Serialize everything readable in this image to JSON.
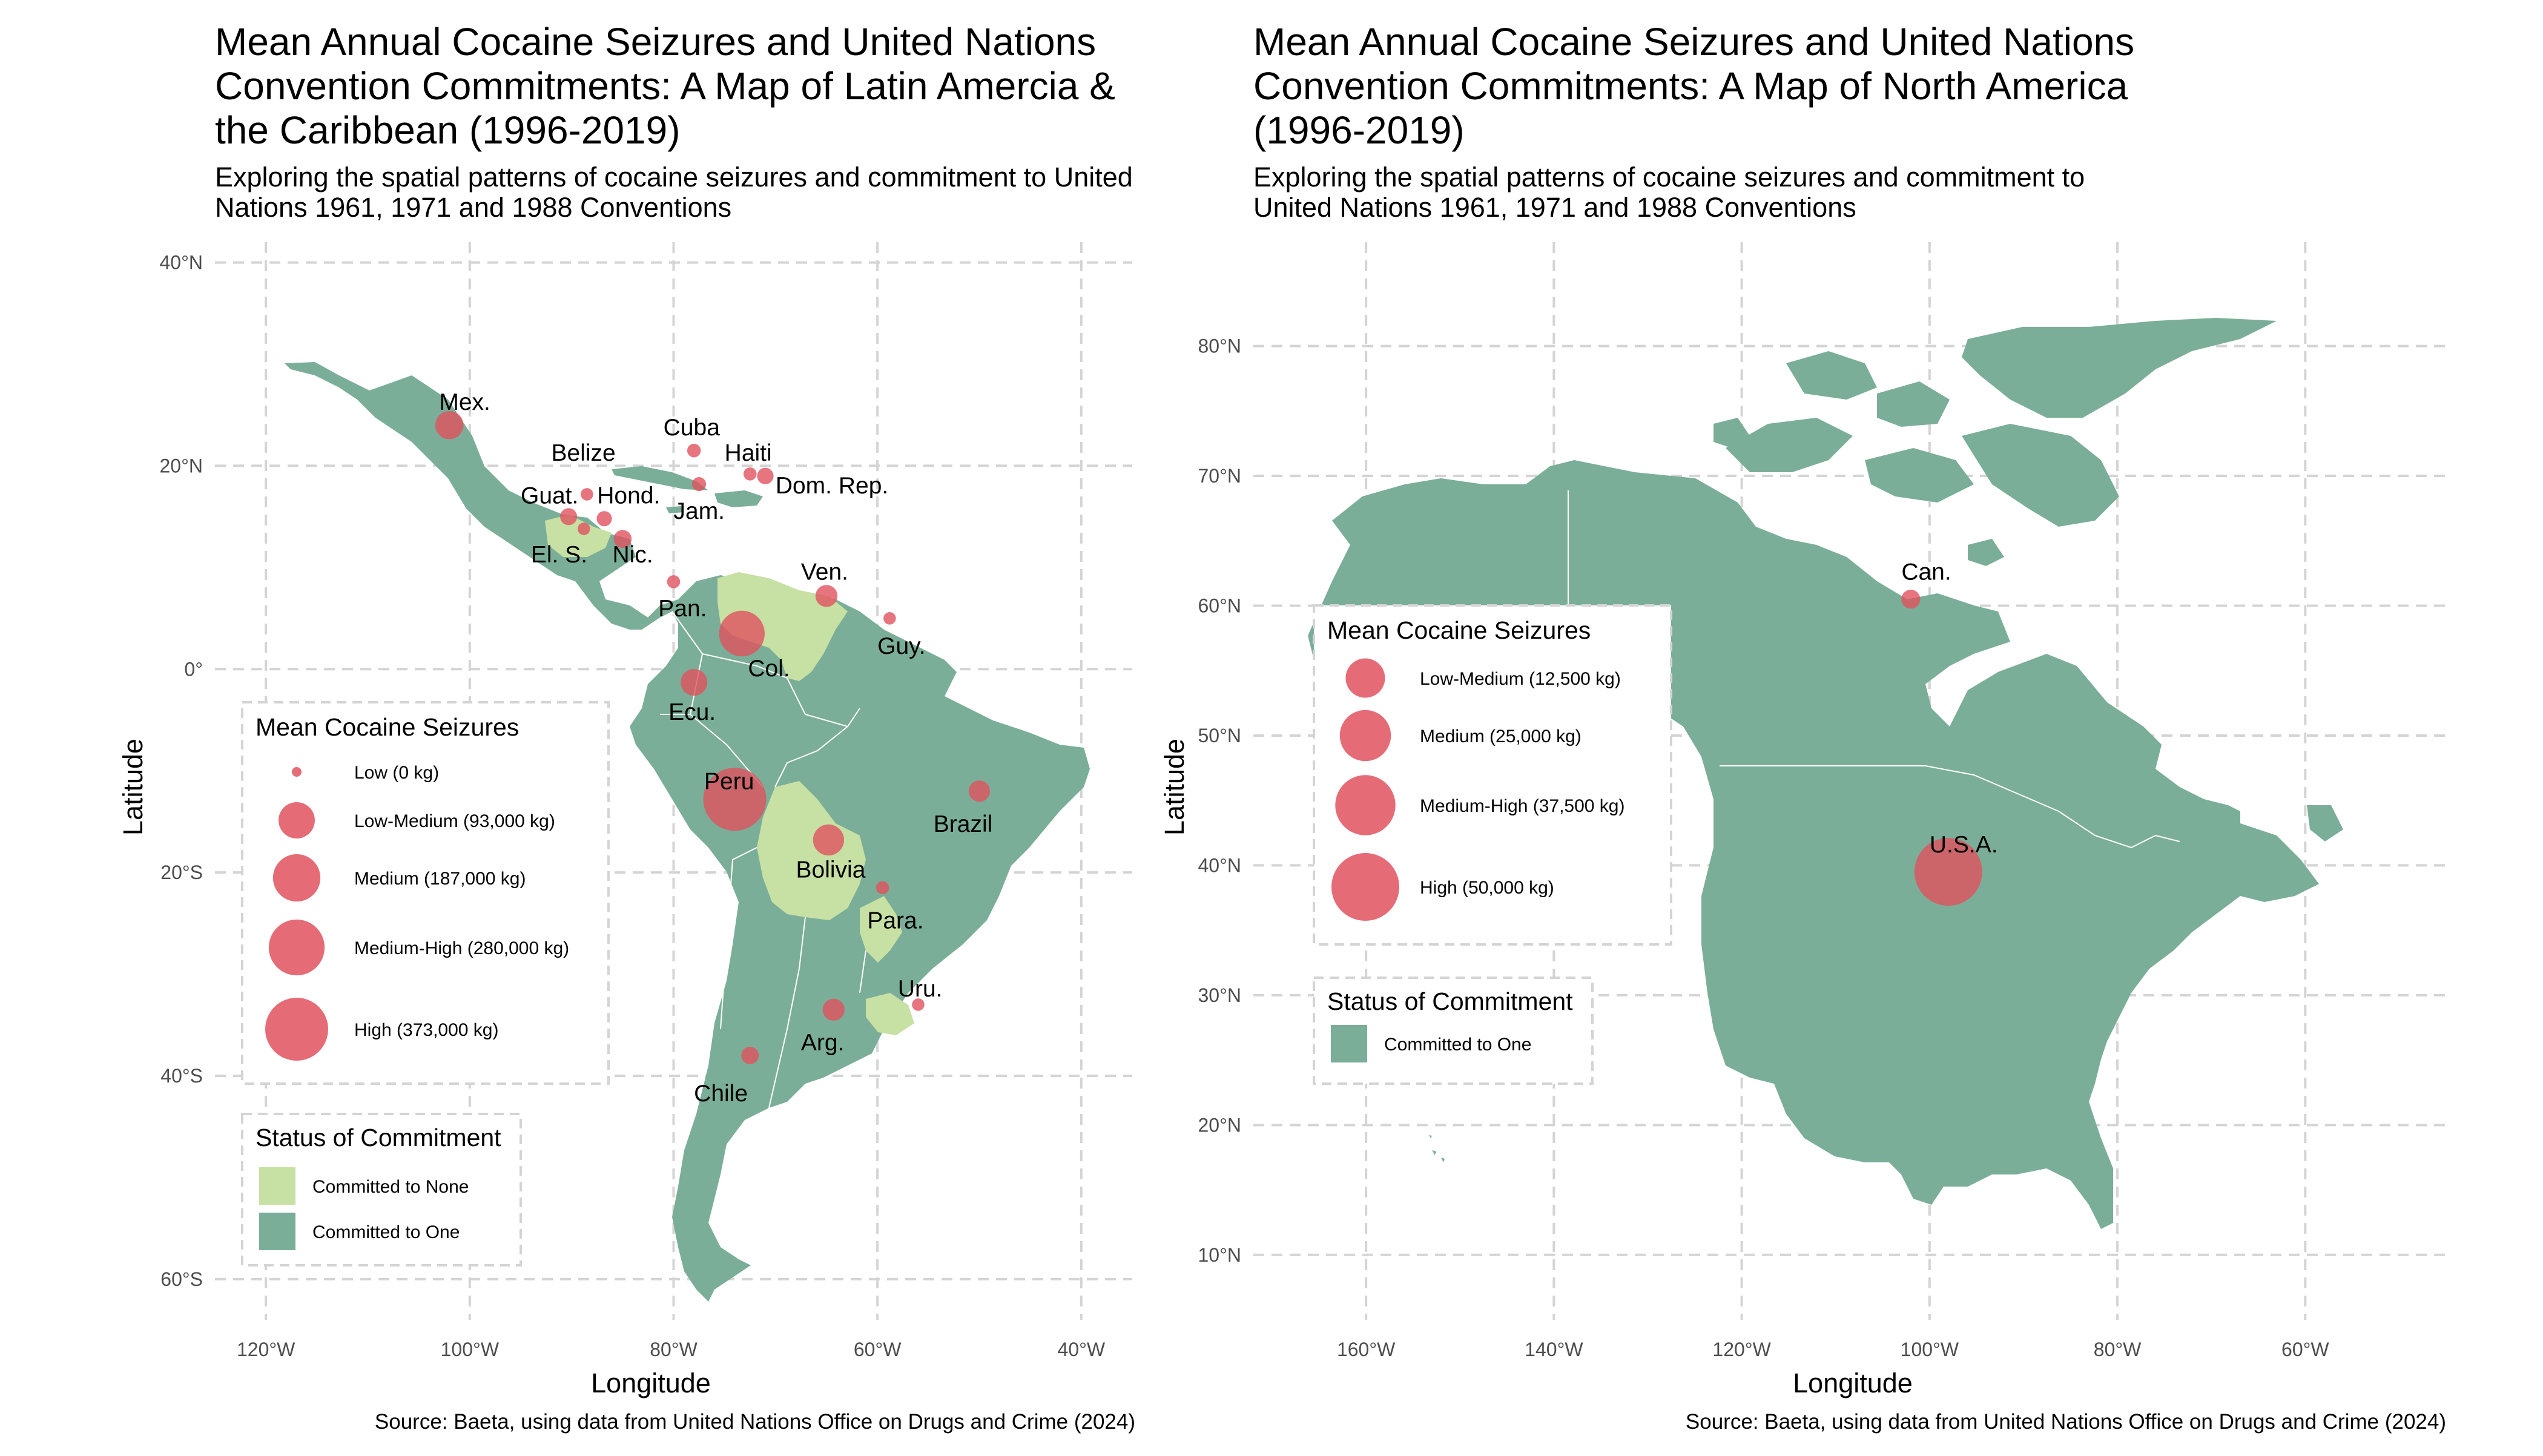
{
  "chart_data": [
    {
      "type": "map",
      "title": "Mean Annual Cocaine Seizures and United Nations Convention Commitments: A Map of Latin Amercia & the Caribbean (1996-2019)",
      "title_lines": [
        "Mean Annual Cocaine Seizures and United Nations",
        "Convention Commitments: A Map of Latin Amercia &",
        "the Caribbean (1996-2019)"
      ],
      "subtitle_lines": [
        "Exploring the spatial patterns of cocaine seizures and commitment to United",
        "Nations 1961, 1971 and 1988 Conventions"
      ],
      "xlabel": "Longitude",
      "ylabel": "Latitude",
      "caption": "Source: Baeta, using data from United Nations Office on Drugs and Crime (2024)",
      "xlim": [
        -125,
        -35
      ],
      "ylim": [
        -64,
        42
      ],
      "x_ticks": [
        -120,
        -100,
        -80,
        -60,
        -40
      ],
      "x_tick_labels": [
        "120°W",
        "100°W",
        "80°W",
        "60°W",
        "40°W"
      ],
      "y_ticks": [
        40,
        20,
        0,
        -20,
        -40,
        -60
      ],
      "y_tick_labels": [
        "40°N",
        "20°N",
        "0°",
        "20°S",
        "40°S",
        "60°S"
      ],
      "grid": true,
      "size_legend": {
        "title": "Mean Cocaine Seizures",
        "items": [
          {
            "label": "Low (0 kg)",
            "value": 0
          },
          {
            "label": "Low-Medium (93,000 kg)",
            "value": 93000
          },
          {
            "label": "Medium (187,000 kg)",
            "value": 187000
          },
          {
            "label": "Medium-High (280,000 kg)",
            "value": 280000
          },
          {
            "label": "High (373,000 kg)",
            "value": 373000
          }
        ]
      },
      "fill_legend": {
        "title": "Status of Commitment",
        "items": [
          {
            "label": "Committed to None",
            "color": "#c7e0a3"
          },
          {
            "label": "Committed to One",
            "color": "#7bae98"
          }
        ]
      },
      "points": [
        {
          "label": "Mex.",
          "lon": -102,
          "lat": 24,
          "value": 45000
        },
        {
          "label": "Cuba",
          "lon": -78,
          "lat": 21.5,
          "value": 2000
        },
        {
          "label": "Haiti",
          "lon": -72.5,
          "lat": 19.2,
          "value": 1500
        },
        {
          "label": "Dom. Rep.",
          "lon": -71,
          "lat": 19,
          "value": 6000
        },
        {
          "label": "Jam.",
          "lon": -77.5,
          "lat": 18.2,
          "value": 2500
        },
        {
          "label": "Belize",
          "lon": -88.5,
          "lat": 17.2,
          "value": 1000
        },
        {
          "label": "Guat.",
          "lon": -90.3,
          "lat": 15,
          "value": 7000
        },
        {
          "label": "Hond.",
          "lon": -86.8,
          "lat": 14.8,
          "value": 4000
        },
        {
          "label": "El. S.",
          "lon": -88.8,
          "lat": 13.8,
          "value": 1000
        },
        {
          "label": "Nic.",
          "lon": -85,
          "lat": 12.8,
          "value": 9000
        },
        {
          "label": "Pan.",
          "lon": -80,
          "lat": 8.6,
          "value": 1500
        },
        {
          "label": "Ven.",
          "lon": -65,
          "lat": 7.2,
          "value": 20000
        },
        {
          "label": "Guy.",
          "lon": -58.8,
          "lat": 5,
          "value": 1000
        },
        {
          "label": "Col.",
          "lon": -73.3,
          "lat": 3.5,
          "value": 170000
        },
        {
          "label": "Ecu.",
          "lon": -78,
          "lat": -1.3,
          "value": 38000
        },
        {
          "label": "Peru",
          "lon": -74,
          "lat": -12.8,
          "value": 373000
        },
        {
          "label": "Brazil",
          "lon": -50,
          "lat": -12,
          "value": 18000
        },
        {
          "label": "Bolivia",
          "lon": -64.8,
          "lat": -16.8,
          "value": 60000
        },
        {
          "label": "Para.",
          "lon": -59.5,
          "lat": -21.5,
          "value": 1500
        },
        {
          "label": "Uru.",
          "lon": -56,
          "lat": -33,
          "value": 1000
        },
        {
          "label": "Arg.",
          "lon": -64.3,
          "lat": -33.5,
          "value": 20000
        },
        {
          "label": "Chile",
          "lon": -72.5,
          "lat": -38,
          "value": 8000
        }
      ]
    },
    {
      "type": "map",
      "title": "Mean Annual Cocaine Seizures and United Nations Convention Commitments: A Map of North America (1996-2019)",
      "title_lines": [
        "Mean Annual Cocaine Seizures and United Nations",
        "Convention Commitments: A Map of North America",
        "(1996-2019)"
      ],
      "subtitle_lines": [
        "Exploring the spatial patterns of cocaine seizures and commitment to",
        "United Nations 1961, 1971 and 1988 Conventions"
      ],
      "xlabel": "Longitude",
      "ylabel": "Latitude",
      "caption": "Source: Baeta, using data from United Nations Office on Drugs and Crime (2024)",
      "xlim": [
        -172,
        -45
      ],
      "ylim": [
        5,
        88
      ],
      "x_ticks": [
        -160,
        -140,
        -120,
        -100,
        -80,
        -60
      ],
      "x_tick_labels": [
        "160°W",
        "140°W",
        "120°W",
        "100°W",
        "80°W",
        "60°W"
      ],
      "y_ticks": [
        80,
        70,
        60,
        50,
        40,
        30,
        20,
        10
      ],
      "y_tick_labels": [
        "80°N",
        "70°N",
        "60°N",
        "50°N",
        "40°N",
        "30°N",
        "20°N",
        "10°N"
      ],
      "grid": true,
      "size_legend": {
        "title": "Mean Cocaine Seizures",
        "items": [
          {
            "label": "Low-Medium (12,500 kg)",
            "value": 12500
          },
          {
            "label": "Medium (25,000 kg)",
            "value": 25000
          },
          {
            "label": "Medium-High (37,500 kg)",
            "value": 37500
          },
          {
            "label": "High (50,000 kg)",
            "value": 50000
          }
        ]
      },
      "fill_legend": {
        "title": "Status of Commitment",
        "items": [
          {
            "label": "Committed to One",
            "color": "#7bae98"
          }
        ]
      },
      "points": [
        {
          "label": "Can.",
          "lon": -102,
          "lat": 60.5,
          "value": 1000
        },
        {
          "label": "U.S.A.",
          "lon": -98,
          "lat": 39.5,
          "value": 50000
        }
      ]
    }
  ],
  "colors": {
    "land": "#7bae98",
    "none": "#c7e0a3",
    "seizure": "#e0525f",
    "grid": "#d4d4d4"
  }
}
